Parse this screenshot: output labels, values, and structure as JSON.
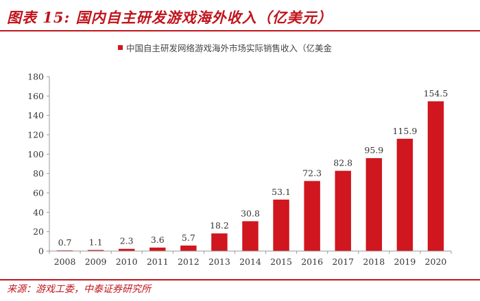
{
  "figure_title": "图表 15: 国内自主研发游戏海外收入（亿美元）",
  "source": "来源：游戏工委，中泰证券研究所",
  "colors": {
    "accent": "#c0141c",
    "bar": "#d0161e",
    "axis": "#999999",
    "text": "#333333"
  },
  "chart_data": {
    "type": "bar",
    "title": "",
    "legend": [
      "中国自主研发网络游戏海外市场实际销售收入（亿美金"
    ],
    "legend_position": "top-center",
    "categories": [
      "2008",
      "2009",
      "2010",
      "2011",
      "2012",
      "2013",
      "2014",
      "2015",
      "2016",
      "2017",
      "2018",
      "2019",
      "2020"
    ],
    "values": [
      0.7,
      1.1,
      2.3,
      3.6,
      5.7,
      18.2,
      30.8,
      53.1,
      72.3,
      82.8,
      95.9,
      115.9,
      154.5
    ],
    "data_labels": [
      "0.7",
      "1.1",
      "2.3",
      "3.6",
      "5.7",
      "18.2",
      "30.8",
      "53.1",
      "72.3",
      "82.8",
      "95.9",
      "115.9",
      "154.5"
    ],
    "ylim": [
      0,
      180
    ],
    "yticks": [
      0,
      20,
      40,
      60,
      80,
      100,
      120,
      140,
      160,
      180
    ],
    "xlabel": "",
    "ylabel": "",
    "grid": false
  }
}
